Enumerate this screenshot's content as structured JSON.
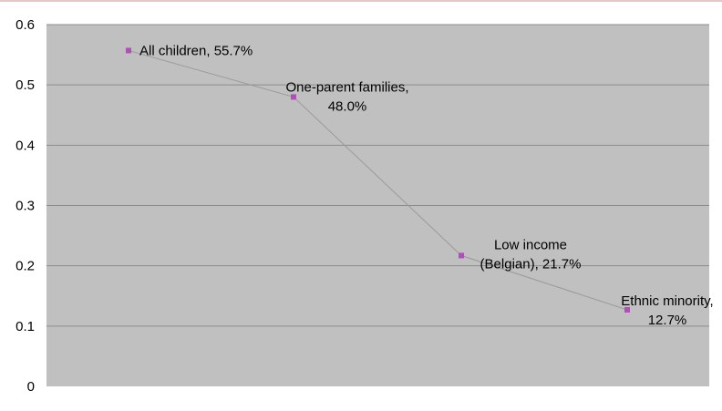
{
  "chart_data": {
    "type": "line",
    "title": "",
    "xlabel": "",
    "ylabel": "",
    "ylim": [
      0,
      0.6
    ],
    "yticks": [
      "0",
      "0.1",
      "0.2",
      "0.3",
      "0.4",
      "0.5",
      "0.6"
    ],
    "grid": "horizontal",
    "legend": "none",
    "points": [
      {
        "x": 1,
        "y": 0.557,
        "label": [
          "All children, 55.7%"
        ]
      },
      {
        "x": 2,
        "y": 0.48,
        "label": [
          "One-parent families,",
          "48.0%"
        ]
      },
      {
        "x": 3,
        "y": 0.217,
        "label": [
          "Low income",
          "(Belgian), 21.7%"
        ]
      },
      {
        "x": 4,
        "y": 0.127,
        "label": [
          "Ethnic minority,",
          "12.7%"
        ]
      }
    ],
    "colors": {
      "plot_background": "#c0c0c0",
      "gridline": "#8c8c8c",
      "line": "#9a9a9a",
      "marker": "#b04fb8",
      "top_border": "#c9908e"
    }
  }
}
